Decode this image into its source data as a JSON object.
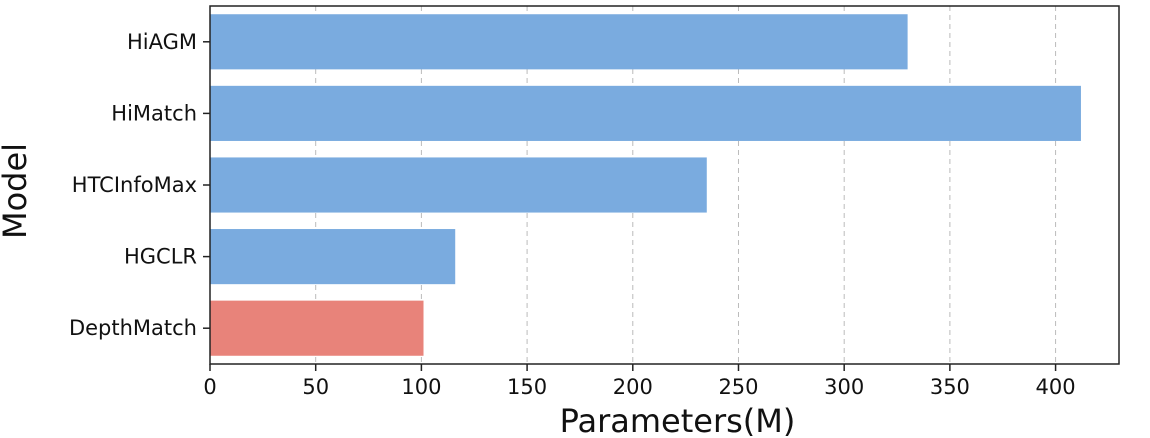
{
  "chart_data": {
    "type": "bar",
    "orientation": "horizontal",
    "categories": [
      "HiAGM",
      "HiMatch",
      "HTCInfoMax",
      "HGCLR",
      "DepthMatch"
    ],
    "values": [
      330,
      412,
      235,
      116,
      101
    ],
    "xlabel": "Parameters(M)",
    "ylabel": "Model",
    "xlim": [
      0,
      430
    ],
    "xticks": [
      0,
      50,
      100,
      150,
      200,
      250,
      300,
      350,
      400
    ],
    "grid": "vertical dashed",
    "colors": {
      "default": "#7aabdf",
      "highlight": "#e8837a"
    },
    "highlight_category": "DepthMatch"
  }
}
